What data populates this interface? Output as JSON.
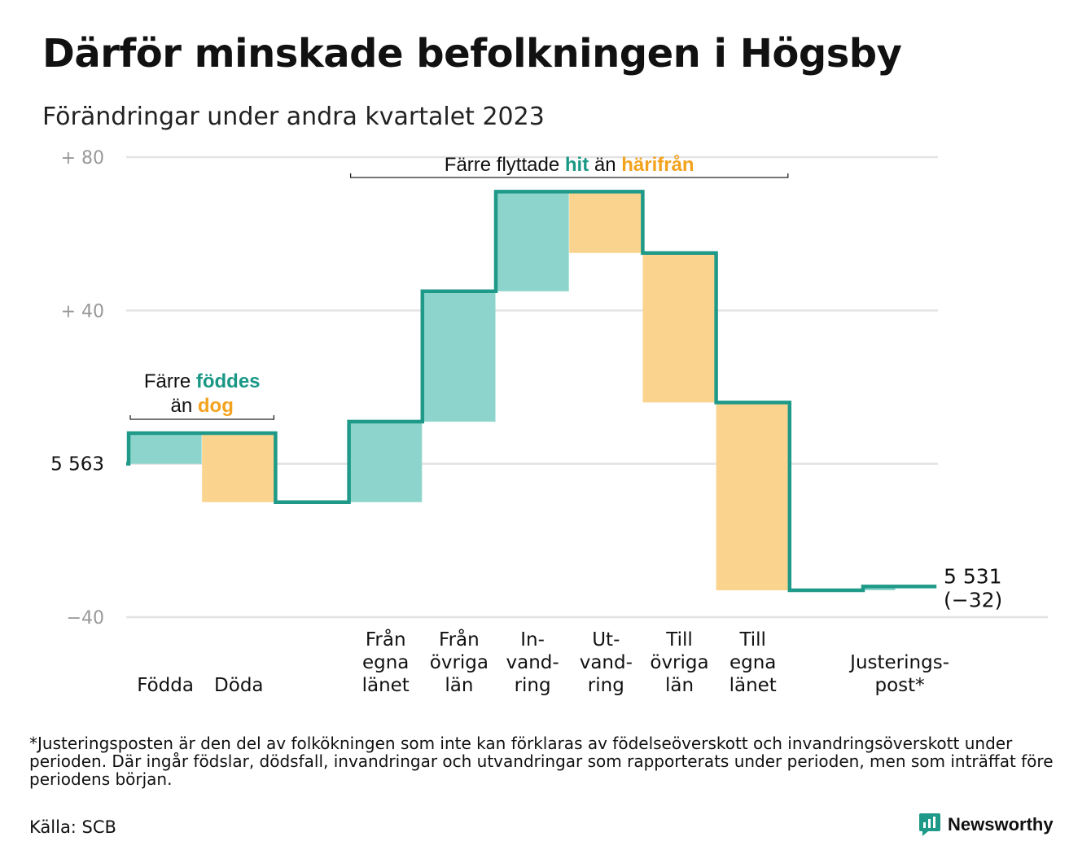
{
  "title": "Därför minskade befolkningen i Högsby",
  "subtitle": "Förändringar under andra kvartalet 2023",
  "footnote": "*Justeringsposten är den del av folkökningen som inte kan förklaras av födelseöverskott och invandringsöverskott under perioden. Där ingår födslar, dödsfall, invandringar och utvandringar som rapporterats under perioden, men som inträffat före periodens början.",
  "source": "Källa: SCB",
  "brand": {
    "name": "Newsworthy",
    "icon": "bar-chart-speech-icon"
  },
  "colors": {
    "line": "#1f9a88",
    "increase": "#8dd5cc",
    "decrease": "#fad48f",
    "grid": "#e3e3e3",
    "tick": "#999999",
    "hit": "#1a9886",
    "harifran": "#f3a21e"
  },
  "chart_data": {
    "type": "waterfall",
    "start": {
      "value": 5563,
      "label": "5  563"
    },
    "end": {
      "value": 5531,
      "label": "5 531",
      "change_label": "(−32)"
    },
    "y_ticks": [
      {
        "value": 80,
        "label": "+  80"
      },
      {
        "value": 40,
        "label": "+  40"
      },
      {
        "value": -40,
        "label": "−40"
      }
    ],
    "ylim": [
      -40,
      80
    ],
    "grid": true,
    "steps": [
      {
        "category": [
          "Födda"
        ],
        "delta": 8
      },
      {
        "category": [
          "Döda"
        ],
        "delta": -18
      },
      {
        "category": [],
        "delta": 0
      },
      {
        "category": [
          "Från",
          "egna",
          "länet"
        ],
        "delta": 21
      },
      {
        "category": [
          "Från",
          "övriga",
          "län"
        ],
        "delta": 34
      },
      {
        "category": [
          "In-",
          "vand-",
          "ring"
        ],
        "delta": 26
      },
      {
        "category": [
          "Ut-",
          "vand-",
          "ring"
        ],
        "delta": -16
      },
      {
        "category": [
          "Till",
          "övriga",
          "län"
        ],
        "delta": -39
      },
      {
        "category": [
          "Till",
          "egna",
          "länet"
        ],
        "delta": -49
      },
      {
        "category": [],
        "delta": 0
      },
      {
        "category": [
          "Justerings-",
          "post*"
        ],
        "delta": 1
      }
    ],
    "annotations": [
      {
        "lines": [
          [
            {
              "text": "Färre "
            },
            {
              "text": "föddes",
              "color": "hit"
            }
          ],
          [
            {
              "text": "än "
            },
            {
              "text": "dog",
              "color": "harifran"
            }
          ]
        ],
        "span": [
          0,
          1
        ]
      },
      {
        "lines": [
          [
            {
              "text": "Färre flyttade "
            },
            {
              "text": "hit",
              "color": "hit"
            },
            {
              "text": "  än "
            },
            {
              "text": "härifrån",
              "color": "harifran"
            }
          ]
        ],
        "span": [
          3,
          8
        ]
      }
    ]
  }
}
